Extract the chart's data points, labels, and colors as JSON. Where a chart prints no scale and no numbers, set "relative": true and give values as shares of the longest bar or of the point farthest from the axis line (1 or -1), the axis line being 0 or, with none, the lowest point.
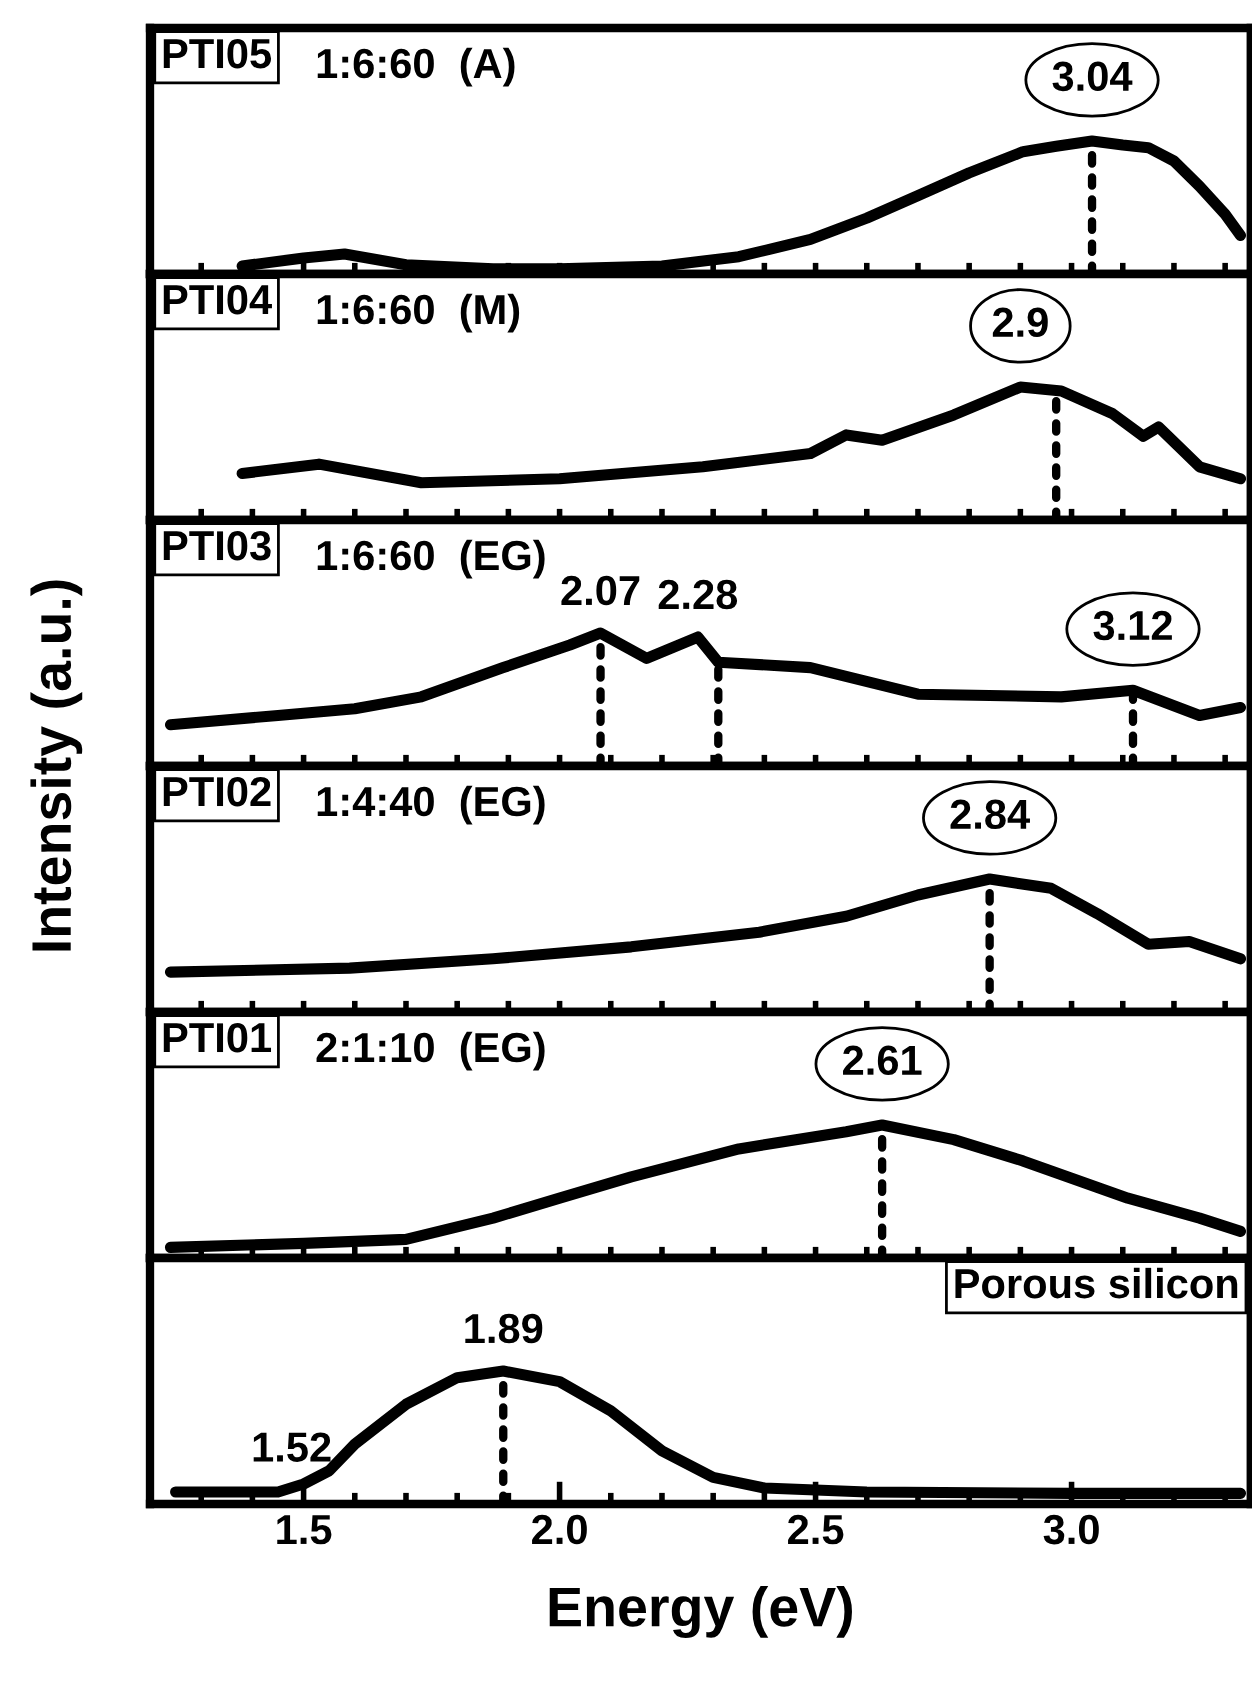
{
  "chart_data": [
    {
      "type": "line",
      "title": "PTI05",
      "subtitle": "1:6:60  (A)",
      "ylabel": "Intensity (a.u.)",
      "relative": true,
      "tick_labels": false,
      "xlim": [
        1.2,
        3.35
      ],
      "xticks": [
        {
          "value": 1.3,
          "label": null
        },
        {
          "value": 1.4,
          "label": null
        },
        {
          "value": 1.5,
          "label": null
        },
        {
          "value": 1.6,
          "label": null
        },
        {
          "value": 1.7,
          "label": null
        },
        {
          "value": 1.8,
          "label": null
        },
        {
          "value": 1.9,
          "label": null
        },
        {
          "value": 2.0,
          "label": null
        },
        {
          "value": 2.1,
          "label": null
        },
        {
          "value": 2.2,
          "label": null
        },
        {
          "value": 2.3,
          "label": null
        },
        {
          "value": 2.4,
          "label": null
        },
        {
          "value": 2.5,
          "label": null
        },
        {
          "value": 2.6,
          "label": null
        },
        {
          "value": 2.7,
          "label": null
        },
        {
          "value": 2.8,
          "label": null
        },
        {
          "value": 2.9,
          "label": null
        },
        {
          "value": 3.0,
          "label": null
        },
        {
          "value": 3.1,
          "label": null
        },
        {
          "value": 3.2,
          "label": null
        },
        {
          "value": 3.3,
          "label": null
        }
      ],
      "series": [
        {
          "color": "#000000",
          "x": [
            1.38,
            1.5,
            1.58,
            1.7,
            1.87,
            2.0,
            2.2,
            2.35,
            2.49,
            2.6,
            2.7,
            2.8,
            2.905,
            2.97,
            3.04,
            3.1,
            3.15,
            3.2,
            3.25,
            3.3,
            3.33
          ],
          "values": [
            0.06,
            0.12,
            0.15,
            0.07,
            0.04,
            0.04,
            0.06,
            0.13,
            0.26,
            0.42,
            0.59,
            0.76,
            0.92,
            0.96,
            1.0,
            0.97,
            0.95,
            0.85,
            0.66,
            0.45,
            0.29
          ]
        }
      ],
      "annotations": [
        {
          "text": "3.04",
          "x": 3.04,
          "y": 1.0
        }
      ],
      "ref_lines": [
        {
          "axis": "x",
          "value": 3.04,
          "line_style": "dotted"
        }
      ]
    },
    {
      "type": "line",
      "title": "PTI04",
      "subtitle": "1:6:60  (M)",
      "relative": true,
      "tick_labels": false,
      "xlim": [
        1.2,
        3.35
      ],
      "xticks": [
        {
          "value": 1.3,
          "label": null
        },
        {
          "value": 1.4,
          "label": null
        },
        {
          "value": 1.5,
          "label": null
        },
        {
          "value": 1.6,
          "label": null
        },
        {
          "value": 1.7,
          "label": null
        },
        {
          "value": 1.8,
          "label": null
        },
        {
          "value": 1.9,
          "label": null
        },
        {
          "value": 2.0,
          "label": null
        },
        {
          "value": 2.1,
          "label": null
        },
        {
          "value": 2.2,
          "label": null
        },
        {
          "value": 2.3,
          "label": null
        },
        {
          "value": 2.4,
          "label": null
        },
        {
          "value": 2.5,
          "label": null
        },
        {
          "value": 2.6,
          "label": null
        },
        {
          "value": 2.7,
          "label": null
        },
        {
          "value": 2.8,
          "label": null
        },
        {
          "value": 2.9,
          "label": null
        },
        {
          "value": 3.0,
          "label": null
        },
        {
          "value": 3.1,
          "label": null
        },
        {
          "value": 3.2,
          "label": null
        },
        {
          "value": 3.3,
          "label": null
        }
      ],
      "series": [
        {
          "color": "#000000",
          "x": [
            1.38,
            1.53,
            1.73,
            2.0,
            2.28,
            2.49,
            2.56,
            2.63,
            2.77,
            2.9,
            2.98,
            3.08,
            3.14,
            3.17,
            3.25,
            3.33
          ],
          "values": [
            0.35,
            0.42,
            0.28,
            0.31,
            0.4,
            0.5,
            0.64,
            0.6,
            0.79,
            1.0,
            0.97,
            0.8,
            0.63,
            0.7,
            0.4,
            0.31
          ]
        }
      ],
      "annotations": [
        {
          "text": "2.9",
          "x": 2.9,
          "y": 1.0
        }
      ],
      "ref_lines": [
        {
          "axis": "x",
          "value": 2.97,
          "line_style": "dotted"
        }
      ]
    },
    {
      "type": "line",
      "title": "PTI03",
      "subtitle": "1:6:60  (EG)",
      "relative": true,
      "tick_labels": false,
      "xlim": [
        1.2,
        3.35
      ],
      "xticks": [
        {
          "value": 1.3,
          "label": null
        },
        {
          "value": 1.4,
          "label": null
        },
        {
          "value": 1.5,
          "label": null
        },
        {
          "value": 1.6,
          "label": null
        },
        {
          "value": 1.7,
          "label": null
        },
        {
          "value": 1.8,
          "label": null
        },
        {
          "value": 1.9,
          "label": null
        },
        {
          "value": 2.0,
          "label": null
        },
        {
          "value": 2.1,
          "label": null
        },
        {
          "value": 2.2,
          "label": null
        },
        {
          "value": 2.3,
          "label": null
        },
        {
          "value": 2.4,
          "label": null
        },
        {
          "value": 2.5,
          "label": null
        },
        {
          "value": 2.6,
          "label": null
        },
        {
          "value": 2.7,
          "label": null
        },
        {
          "value": 2.8,
          "label": null
        },
        {
          "value": 2.9,
          "label": null
        },
        {
          "value": 3.0,
          "label": null
        },
        {
          "value": 3.1,
          "label": null
        },
        {
          "value": 3.2,
          "label": null
        },
        {
          "value": 3.3,
          "label": null
        }
      ],
      "series": [
        {
          "color": "#000000",
          "x": [
            1.24,
            1.45,
            1.6,
            1.73,
            1.89,
            2.02,
            2.08,
            2.17,
            2.27,
            2.31,
            2.49,
            2.7,
            2.98,
            3.12,
            3.25,
            3.33
          ],
          "values": [
            0.31,
            0.38,
            0.43,
            0.52,
            0.74,
            0.91,
            1.0,
            0.81,
            0.97,
            0.78,
            0.74,
            0.54,
            0.52,
            0.57,
            0.38,
            0.44
          ]
        }
      ],
      "annotations": [
        {
          "text": "2.07",
          "x": 2.08,
          "y": 1.0
        },
        {
          "text": "2.28",
          "x": 2.27,
          "y": 0.97
        },
        {
          "text": "3.12",
          "x": 3.12,
          "y": 0.57
        }
      ],
      "ref_lines": [
        {
          "axis": "x",
          "value": 2.08,
          "line_style": "dotted"
        },
        {
          "axis": "x",
          "value": 2.31,
          "line_style": "dotted"
        },
        {
          "axis": "x",
          "value": 3.12,
          "line_style": "dotted"
        }
      ]
    },
    {
      "type": "line",
      "title": "PTI02",
      "subtitle": "1:4:40  (EG)",
      "relative": true,
      "tick_labels": false,
      "xlim": [
        1.2,
        3.35
      ],
      "xticks": [
        {
          "value": 1.3,
          "label": null
        },
        {
          "value": 1.4,
          "label": null
        },
        {
          "value": 1.5,
          "label": null
        },
        {
          "value": 1.6,
          "label": null
        },
        {
          "value": 1.7,
          "label": null
        },
        {
          "value": 1.8,
          "label": null
        },
        {
          "value": 1.9,
          "label": null
        },
        {
          "value": 2.0,
          "label": null
        },
        {
          "value": 2.1,
          "label": null
        },
        {
          "value": 2.2,
          "label": null
        },
        {
          "value": 2.3,
          "label": null
        },
        {
          "value": 2.4,
          "label": null
        },
        {
          "value": 2.5,
          "label": null
        },
        {
          "value": 2.6,
          "label": null
        },
        {
          "value": 2.7,
          "label": null
        },
        {
          "value": 2.8,
          "label": null
        },
        {
          "value": 2.9,
          "label": null
        },
        {
          "value": 3.0,
          "label": null
        },
        {
          "value": 3.1,
          "label": null
        },
        {
          "value": 3.2,
          "label": null
        },
        {
          "value": 3.3,
          "label": null
        }
      ],
      "series": [
        {
          "color": "#000000",
          "x": [
            1.24,
            1.59,
            1.87,
            2.14,
            2.39,
            2.56,
            2.7,
            2.84,
            2.96,
            3.05,
            3.15,
            3.23,
            3.33
          ],
          "values": [
            0.3,
            0.33,
            0.4,
            0.49,
            0.6,
            0.72,
            0.88,
            1.0,
            0.93,
            0.74,
            0.51,
            0.53,
            0.4
          ]
        }
      ],
      "annotations": [
        {
          "text": "2.84",
          "x": 2.84,
          "y": 1.0
        }
      ],
      "ref_lines": [
        {
          "axis": "x",
          "value": 2.84,
          "line_style": "dotted"
        }
      ]
    },
    {
      "type": "line",
      "title": "PTI01",
      "subtitle": "2:1:10  (EG)",
      "relative": true,
      "tick_labels": false,
      "xlim": [
        1.2,
        3.35
      ],
      "xticks": [
        {
          "value": 1.3,
          "label": null
        },
        {
          "value": 1.4,
          "label": null
        },
        {
          "value": 1.5,
          "label": null
        },
        {
          "value": 1.6,
          "label": null
        },
        {
          "value": 1.7,
          "label": null
        },
        {
          "value": 1.8,
          "label": null
        },
        {
          "value": 1.9,
          "label": null
        },
        {
          "value": 2.0,
          "label": null
        },
        {
          "value": 2.1,
          "label": null
        },
        {
          "value": 2.2,
          "label": null
        },
        {
          "value": 2.3,
          "label": null
        },
        {
          "value": 2.4,
          "label": null
        },
        {
          "value": 2.5,
          "label": null
        },
        {
          "value": 2.6,
          "label": null
        },
        {
          "value": 2.7,
          "label": null
        },
        {
          "value": 2.8,
          "label": null
        },
        {
          "value": 2.9,
          "label": null
        },
        {
          "value": 3.0,
          "label": null
        },
        {
          "value": 3.1,
          "label": null
        },
        {
          "value": 3.2,
          "label": null
        },
        {
          "value": 3.3,
          "label": null
        }
      ],
      "series": [
        {
          "color": "#000000",
          "x": [
            1.24,
            1.5,
            1.7,
            1.87,
            2.0,
            2.14,
            2.35,
            2.56,
            2.63,
            2.77,
            2.905,
            3.0,
            3.11,
            3.25,
            3.33
          ],
          "values": [
            0.08,
            0.11,
            0.14,
            0.3,
            0.45,
            0.61,
            0.82,
            0.95,
            1.0,
            0.89,
            0.73,
            0.6,
            0.45,
            0.3,
            0.2
          ]
        }
      ],
      "annotations": [
        {
          "text": "2.61",
          "x": 2.63,
          "y": 1.0
        }
      ],
      "ref_lines": [
        {
          "axis": "x",
          "value": 2.63,
          "line_style": "dotted"
        }
      ]
    },
    {
      "type": "line",
      "title": "Porous silicon",
      "xlabel": "Energy (eV)",
      "relative": true,
      "tick_labels": "x",
      "xlim": [
        1.2,
        3.35
      ],
      "xticks": [
        {
          "value": 1.3,
          "label": null
        },
        {
          "value": 1.4,
          "label": null
        },
        1.5,
        {
          "value": 1.6,
          "label": null
        },
        {
          "value": 1.7,
          "label": null
        },
        {
          "value": 1.8,
          "label": null
        },
        {
          "value": 1.9,
          "label": null
        },
        {
          "value": 2.0,
          "label": "2.0"
        },
        {
          "value": 2.1,
          "label": null
        },
        {
          "value": 2.2,
          "label": null
        },
        {
          "value": 2.3,
          "label": null
        },
        {
          "value": 2.4,
          "label": null
        },
        2.5,
        {
          "value": 2.6,
          "label": null
        },
        {
          "value": 2.7,
          "label": null
        },
        {
          "value": 2.8,
          "label": null
        },
        {
          "value": 2.9,
          "label": null
        },
        {
          "value": 3.0,
          "label": "3.0"
        },
        {
          "value": 3.1,
          "label": null
        },
        {
          "value": 3.2,
          "label": null
        },
        {
          "value": 3.3,
          "label": null
        }
      ],
      "series": [
        {
          "color": "#000000",
          "x": [
            1.25,
            1.45,
            1.5,
            1.55,
            1.6,
            1.7,
            1.8,
            1.89,
            2.0,
            2.1,
            2.2,
            2.3,
            2.4,
            2.6,
            3.0,
            3.33
          ],
          "values": [
            0.09,
            0.09,
            0.15,
            0.25,
            0.45,
            0.75,
            0.95,
            1.0,
            0.92,
            0.7,
            0.4,
            0.2,
            0.12,
            0.09,
            0.08,
            0.08
          ]
        }
      ],
      "annotations": [
        {
          "text": "1.52",
          "x": 1.52,
          "y": 0.15
        },
        {
          "text": "1.89",
          "x": 1.89,
          "y": 1.0
        }
      ],
      "ref_lines": [
        {
          "axis": "x",
          "value": 1.89,
          "line_style": "dotted"
        }
      ]
    }
  ]
}
